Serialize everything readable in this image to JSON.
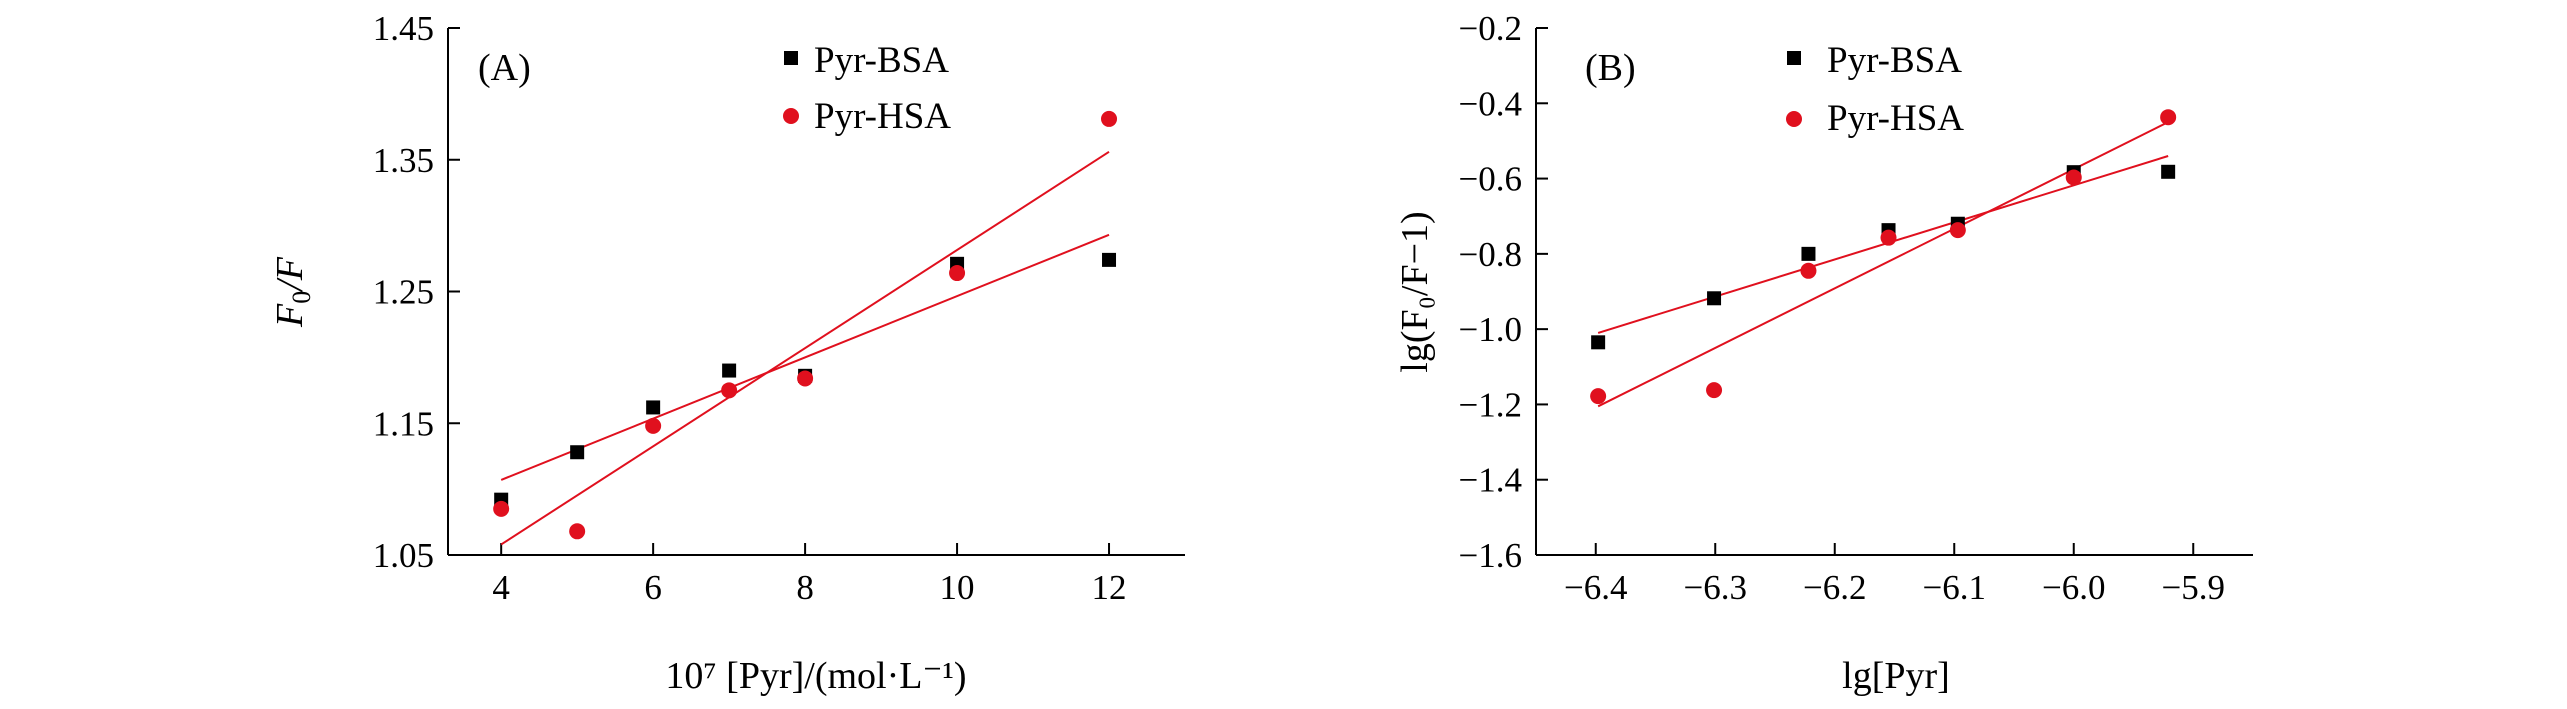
{
  "chart_data": [
    {
      "type": "scatter",
      "panel_label": "(A)",
      "xlabel": "10⁷ [Pyr]/(mol·L⁻¹)",
      "ylabel_main": "F",
      "ylabel_sub": "0",
      "ylabel_rest": "/F",
      "xlim": [
        3.3,
        13.0
      ],
      "ylim": [
        1.05,
        1.45
      ],
      "xticks": [
        4,
        6,
        8,
        10,
        12
      ],
      "xtick_labels": [
        "4",
        "6",
        "8",
        "10",
        "12"
      ],
      "yticks": [
        1.05,
        1.15,
        1.25,
        1.35,
        1.45
      ],
      "ytick_labels": [
        "1.05",
        "1.15",
        "1.25",
        "1.35",
        "1.45"
      ],
      "legend_position": "top-center",
      "series": [
        {
          "name": "Pyr-BSA",
          "marker": "square",
          "color": "#000000",
          "x": [
            4,
            5,
            6,
            7,
            8,
            10,
            12
          ],
          "y": [
            1.092,
            1.128,
            1.162,
            1.19,
            1.186,
            1.271,
            1.274
          ],
          "fit": {
            "x": [
              4,
              12
            ],
            "y": [
              1.107,
              1.293
            ],
            "color": "#e0101e"
          }
        },
        {
          "name": "Pyr-HSA",
          "marker": "circle",
          "color": "#e0101e",
          "x": [
            4,
            5,
            6,
            7,
            8,
            10,
            12
          ],
          "y": [
            1.085,
            1.068,
            1.148,
            1.175,
            1.184,
            1.264,
            1.381
          ],
          "fit": {
            "x": [
              4,
              12
            ],
            "y": [
              1.058,
              1.356
            ],
            "color": "#e0101e"
          }
        }
      ]
    },
    {
      "type": "scatter",
      "panel_label": "(B)",
      "xlabel": "lg[Pyr]",
      "ylabel": "lg(F₀/F−1)",
      "xlim": [
        -6.45,
        -5.85
      ],
      "ylim": [
        -1.6,
        -0.2
      ],
      "xticks": [
        -6.4,
        -6.3,
        -6.2,
        -6.1,
        -6.0,
        -5.9
      ],
      "xtick_labels": [
        "−6.4",
        "−6.3",
        "−6.2",
        "−6.1",
        "−6.0",
        "−5.9"
      ],
      "yticks": [
        -1.6,
        -1.4,
        -1.2,
        -1.0,
        -0.8,
        -0.6,
        -0.4,
        -0.2
      ],
      "ytick_labels": [
        "−1.6",
        "−1.4",
        "−1.2",
        "−1.0",
        "−0.8",
        "−0.6",
        "−0.4",
        "−0.2"
      ],
      "legend_position": "top-center",
      "series": [
        {
          "name": "Pyr-BSA",
          "marker": "square",
          "color": "#000000",
          "x": [
            -6.398,
            -6.301,
            -6.222,
            -6.155,
            -6.097,
            -6.0,
            -5.921
          ],
          "y": [
            -1.035,
            -0.918,
            -0.8,
            -0.737,
            -0.72,
            -0.583,
            -0.582
          ],
          "fit": {
            "x": [
              -6.398,
              -5.921
            ],
            "y": [
              -1.01,
              -0.54
            ],
            "color": "#e0101e"
          }
        },
        {
          "name": "Pyr-HSA",
          "marker": "circle",
          "color": "#e0101e",
          "x": [
            -6.398,
            -6.301,
            -6.222,
            -6.155,
            -6.097,
            -6.0,
            -5.921
          ],
          "y": [
            -1.178,
            -1.162,
            -0.845,
            -0.757,
            -0.737,
            -0.597,
            -0.437
          ],
          "fit": {
            "x": [
              -6.398,
              -5.921
            ],
            "y": [
              -1.205,
              -0.45
            ],
            "color": "#e0101e"
          }
        }
      ]
    }
  ]
}
